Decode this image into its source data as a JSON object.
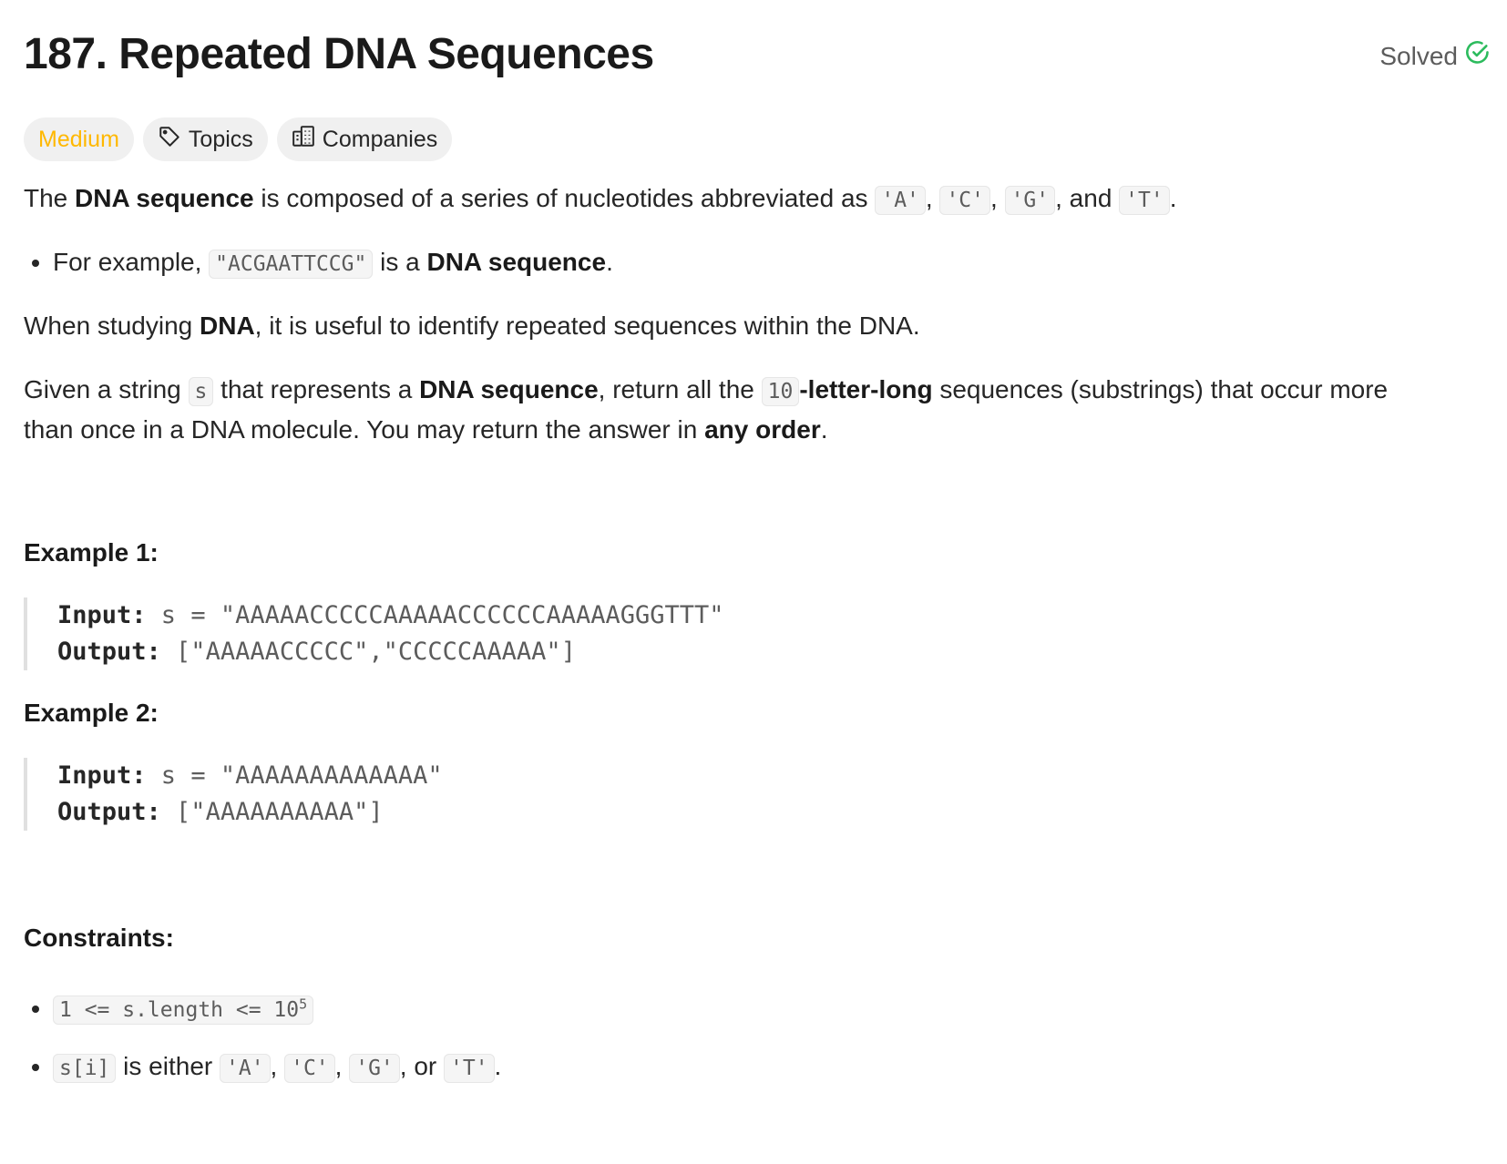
{
  "problem": {
    "title": "187. Repeated DNA Sequences",
    "status": "Solved",
    "difficulty": "Medium",
    "topics_label": "Topics",
    "companies_label": "Companies"
  },
  "description": {
    "p1_a": "The ",
    "p1_b": "DNA sequence",
    "p1_c": " is composed of a series of nucleotides abbreviated as ",
    "nucleotides": [
      "'A'",
      "'C'",
      "'G'",
      "'T'"
    ],
    "sep_comma": ", ",
    "sep_and": ", and ",
    "period": ".",
    "bullet1_a": "For example, ",
    "bullet1_code": "\"ACGAATTCCG\"",
    "bullet1_b": " is a ",
    "bullet1_c": "DNA sequence",
    "p2_a": "When studying ",
    "p2_b": "DNA",
    "p2_c": ", it is useful to identify repeated sequences within the DNA.",
    "p3_a": "Given a string ",
    "p3_code_s": "s",
    "p3_b": " that represents a ",
    "p3_c": "DNA sequence",
    "p3_d": ", return all the ",
    "p3_code_10": "10",
    "p3_e": "-letter-long",
    "p3_f": " sequences (substrings) that occur more",
    "p3_g": "than once in a DNA molecule. You may return the answer in ",
    "p3_h": "any order",
    "p3_i": "."
  },
  "examples": [
    {
      "heading": "Example 1:",
      "input_label": "Input:",
      "input_value": " s = \"AAAAACCCCCAAAAACCCCCCAAAAAGGGTTT\"",
      "output_label": "Output:",
      "output_value": " [\"AAAAACCCCC\",\"CCCCCAAAAA\"]"
    },
    {
      "heading": "Example 2:",
      "input_label": "Input:",
      "input_value": " s = \"AAAAAAAAAAAAA\"",
      "output_label": "Output:",
      "output_value": " [\"AAAAAAAAAA\"]"
    }
  ],
  "constraints": {
    "heading": "Constraints:",
    "c1_code": "1 <= s.length <= 10",
    "c1_sup": "5",
    "c2_code": "s[i]",
    "c2_text": " is either ",
    "c2_or": ", or ",
    "letters": [
      "'A'",
      "'C'",
      "'G'",
      "'T'"
    ]
  }
}
